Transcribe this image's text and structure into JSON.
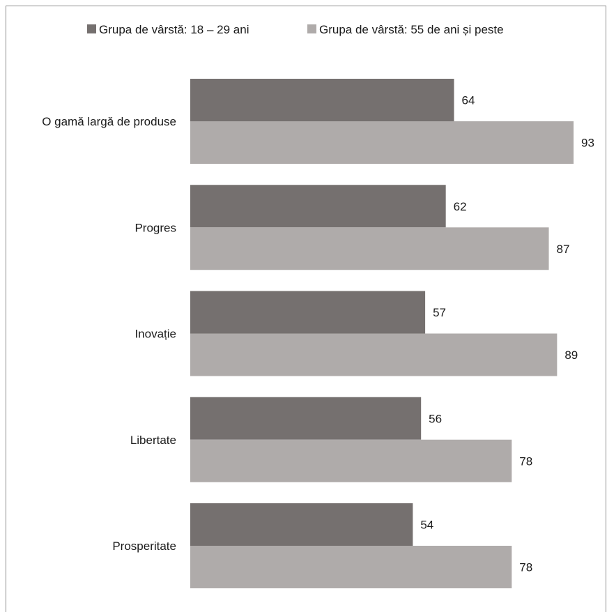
{
  "chart_data": {
    "type": "bar",
    "orientation": "horizontal",
    "categories": [
      "O gamă largă de produse",
      "Progres",
      "Inovație",
      "Libertate",
      "Prosperitate"
    ],
    "series": [
      {
        "name": "Grupa de vârstă: 18 – 29 ani",
        "color": "#75706f",
        "values": [
          64,
          62,
          57,
          56,
          54
        ]
      },
      {
        "name": "Grupa de vârstă: 55 de ani și peste",
        "color": "#afabaa",
        "values": [
          93,
          87,
          89,
          78,
          78
        ]
      }
    ],
    "title": "",
    "xlabel": "",
    "ylabel": "",
    "xlim": [
      0,
      100
    ],
    "grid": false,
    "legend": "top",
    "data_labels": true
  }
}
